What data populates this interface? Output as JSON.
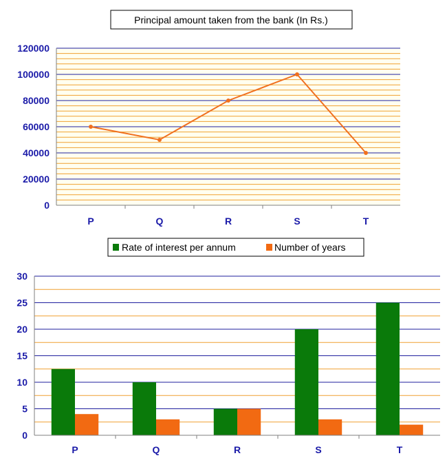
{
  "chart_data": [
    {
      "type": "line",
      "title": "Principal amount taken from the bank (In Rs.)",
      "categories": [
        "P",
        "Q",
        "R",
        "S",
        "T"
      ],
      "series": [
        {
          "values": [
            60000,
            50000,
            80000,
            100000,
            40000
          ],
          "color": "#f07020"
        }
      ],
      "ylim": [
        0,
        120000
      ],
      "yticks": [
        0,
        20000,
        40000,
        60000,
        80000,
        100000,
        120000
      ],
      "grid": true,
      "colors": {
        "major_grid": "#1f1f9e",
        "minor_grid": "#f0a030",
        "axis_text": "#1a1aa8",
        "plot_bg": "#fffff0"
      }
    },
    {
      "type": "bar",
      "categories": [
        "P",
        "Q",
        "R",
        "S",
        "T"
      ],
      "series": [
        {
          "name": "Rate of interest per annum",
          "values": [
            12.5,
            10,
            5,
            20,
            25
          ],
          "color": "#0a7a0a"
        },
        {
          "name": "Number of years",
          "values": [
            4,
            3,
            5,
            3,
            2
          ],
          "color": "#f26a12"
        }
      ],
      "ylim": [
        0,
        30
      ],
      "yticks": [
        0,
        5,
        10,
        15,
        20,
        25,
        30
      ],
      "grid": true,
      "legend": "top",
      "colors": {
        "major_grid": "#1f1f9e",
        "minor_grid": "#f0a030",
        "axis_text": "#1a1aa8",
        "plot_bg": "#ffffff"
      }
    }
  ]
}
